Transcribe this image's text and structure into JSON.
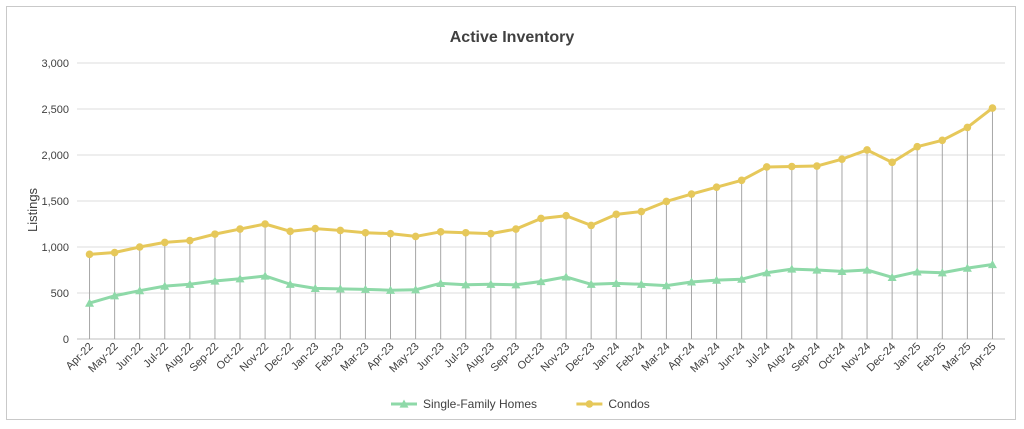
{
  "chart_data": {
    "type": "line",
    "title": "Active Inventory",
    "xlabel": "",
    "ylabel": "Listings",
    "ylim": [
      0,
      3000
    ],
    "yticks": [
      0,
      500,
      1000,
      1500,
      2000,
      2500,
      3000
    ],
    "ytick_labels": [
      "0",
      "500",
      "1,000",
      "1,500",
      "2,000",
      "2,500",
      "3,000"
    ],
    "grid": "horizontal",
    "drop_lines": true,
    "legend_position": "bottom",
    "categories": [
      "Apr-22",
      "May-22",
      "Jun-22",
      "Jul-22",
      "Aug-22",
      "Sep-22",
      "Oct-22",
      "Nov-22",
      "Dec-22",
      "Jan-23",
      "Feb-23",
      "Mar-23",
      "Apr-23",
      "May-23",
      "Jun-23",
      "Jul-23",
      "Aug-23",
      "Sep-23",
      "Oct-23",
      "Nov-23",
      "Dec-23",
      "Jan-24",
      "Feb-24",
      "Mar-24",
      "Apr-24",
      "May-24",
      "Jun-24",
      "Jul-24",
      "Aug-24",
      "Sep-24",
      "Oct-24",
      "Nov-24",
      "Dec-24",
      "Jan-25",
      "Feb-25",
      "Mar-25",
      "Apr-25"
    ],
    "series": [
      {
        "name": "Single-Family Homes",
        "color": "#8ed9a8",
        "marker": "triangle",
        "values": [
          390,
          470,
          525,
          575,
          595,
          630,
          655,
          685,
          595,
          550,
          545,
          540,
          530,
          535,
          605,
          590,
          595,
          590,
          625,
          675,
          595,
          605,
          595,
          580,
          620,
          640,
          650,
          720,
          760,
          750,
          735,
          750,
          670,
          730,
          720,
          770,
          810
        ]
      },
      {
        "name": "Condos",
        "color": "#e6c85a",
        "marker": "circle",
        "values": [
          920,
          940,
          1000,
          1050,
          1070,
          1140,
          1195,
          1250,
          1170,
          1200,
          1180,
          1155,
          1145,
          1115,
          1165,
          1155,
          1145,
          1195,
          1310,
          1340,
          1235,
          1355,
          1385,
          1495,
          1575,
          1650,
          1725,
          1870,
          1875,
          1880,
          1955,
          2055,
          1920,
          2090,
          2160,
          2300,
          2510
        ]
      }
    ]
  }
}
